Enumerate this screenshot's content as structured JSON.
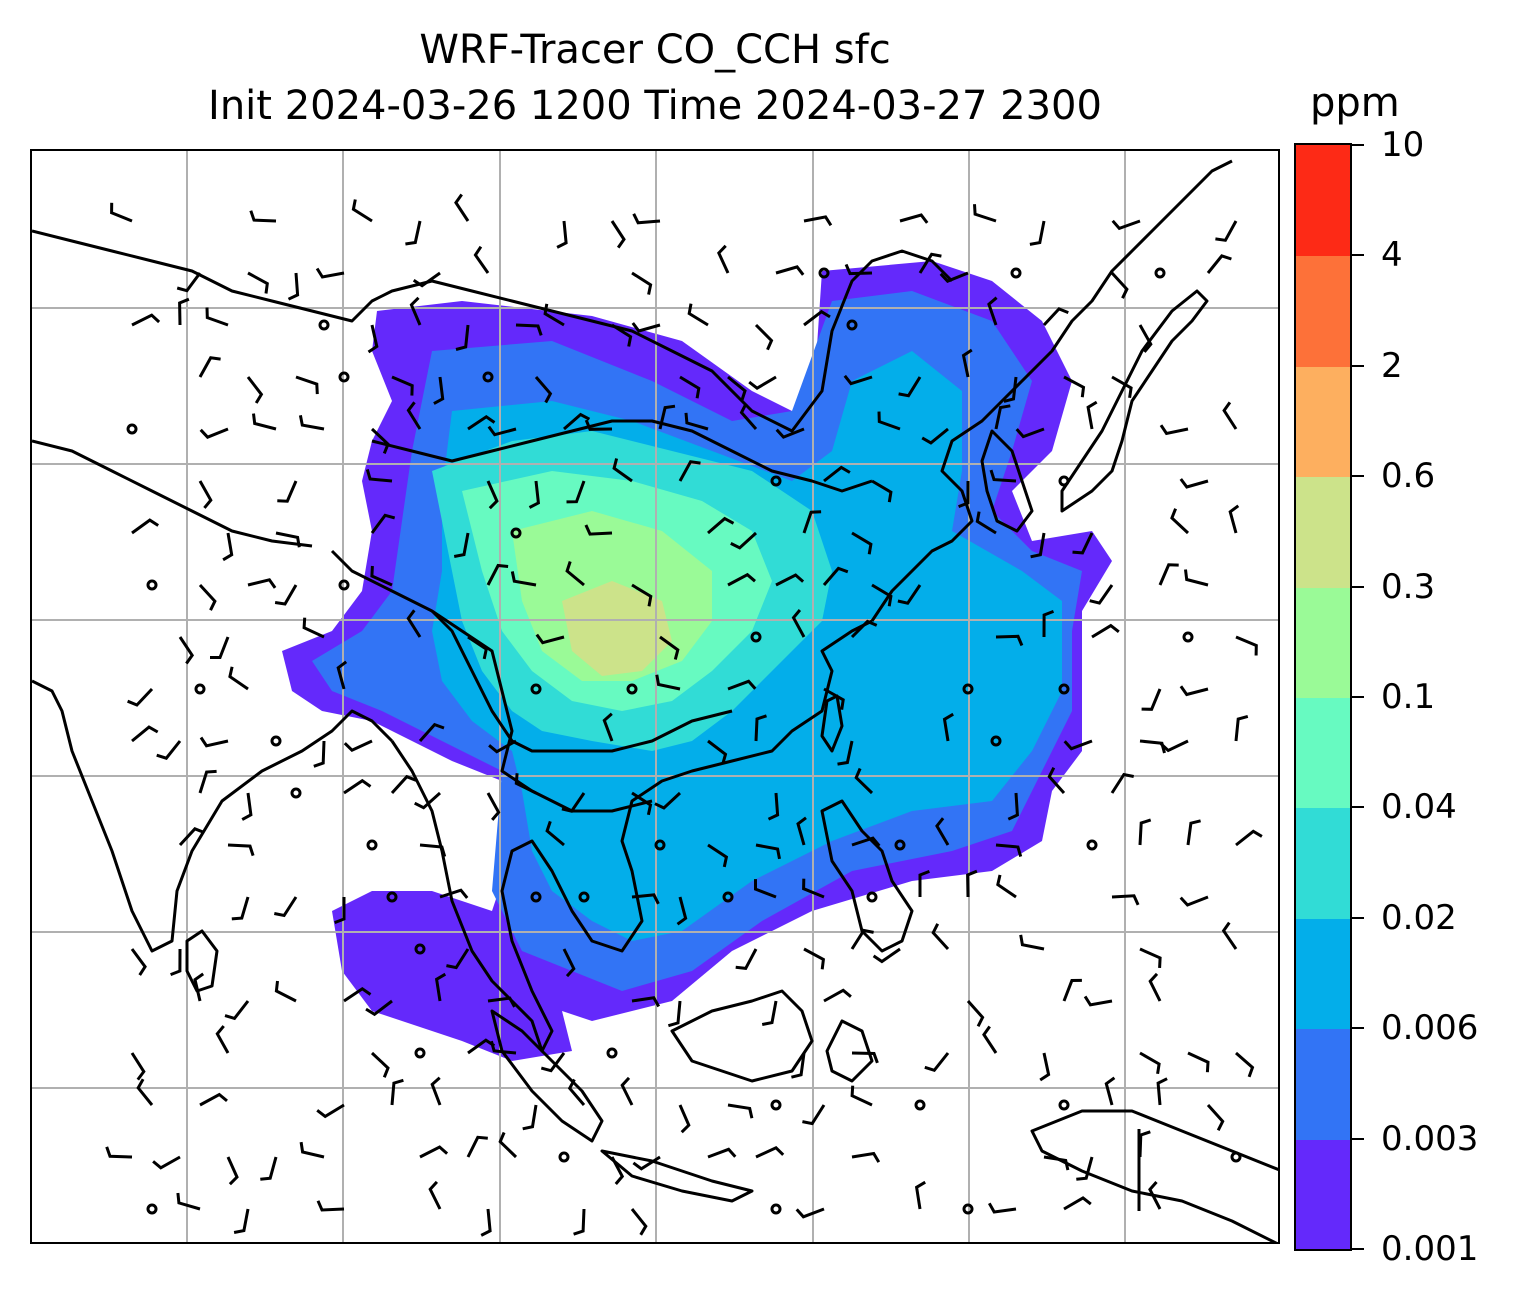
{
  "title": {
    "line1": "WRF-Tracer CO_CCH sfc",
    "line2": "Init 2024-03-26 1200 Time 2024-03-27 2300"
  },
  "colorbar": {
    "unit": "ppm",
    "levels": [
      "0.001",
      "0.003",
      "0.006",
      "0.02",
      "0.04",
      "0.1",
      "0.3",
      "0.6",
      "2",
      "4",
      "10"
    ],
    "colors": [
      "#6429fb",
      "#3274f5",
      "#03aeea",
      "#31dcd6",
      "#67fac1",
      "#9afa97",
      "#cce38a",
      "#fdaf5f",
      "#fd7139",
      "#fd2a16"
    ]
  },
  "map": {
    "coastline_color": "#000000",
    "gridline_color": "#b0b0b0",
    "wind_barb_color": "#000000"
  }
}
